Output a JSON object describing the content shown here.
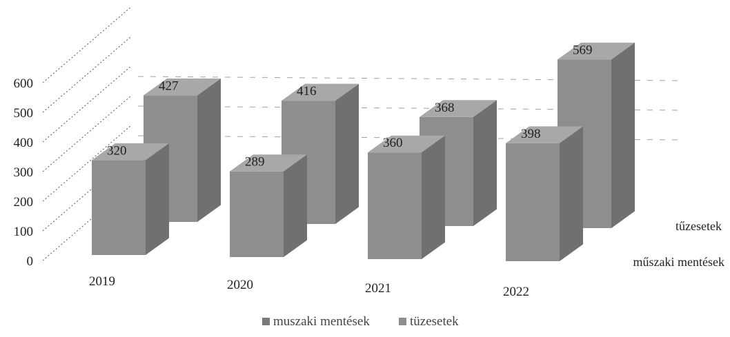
{
  "chart_data": {
    "type": "bar",
    "view": "3d-column",
    "categories": [
      "2019",
      "2020",
      "2021",
      "2022"
    ],
    "series": [
      {
        "name": "műszaki mentések",
        "values": [
          320,
          289,
          360,
          398
        ]
      },
      {
        "name": "tűzesetek",
        "values": [
          427,
          416,
          368,
          569
        ]
      }
    ],
    "yticks": [
      "0",
      "100",
      "200",
      "300",
      "400",
      "500",
      "600"
    ],
    "ylim": [
      0,
      600
    ],
    "series_axis_labels": [
      "tűzesetek",
      "műszaki mentések"
    ],
    "legend": {
      "position": "bottom",
      "entries": [
        "muszaki mentések",
        "tüzesetek"
      ]
    },
    "title": "",
    "xlabel": "",
    "ylabel": "",
    "grid": true,
    "colors": {
      "front": "#8e8e8e",
      "side": "#707070",
      "top": "#a8a8a8",
      "legend_swatch": "#7a7a7a",
      "grid": "#555555"
    }
  }
}
